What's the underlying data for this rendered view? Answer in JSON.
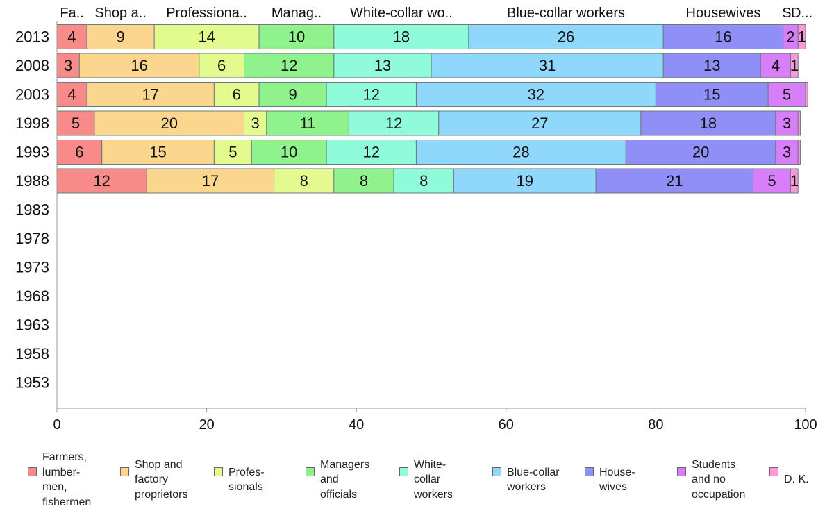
{
  "chart_data": {
    "type": "bar",
    "orientation": "horizontal",
    "stacked": true,
    "categories": [
      "2013",
      "2008",
      "2003",
      "1998",
      "1993",
      "1988",
      "1983",
      "1978",
      "1973",
      "1968",
      "1963",
      "1958",
      "1953"
    ],
    "xlim": [
      0,
      100
    ],
    "xticks": [
      "0",
      "20",
      "40",
      "60",
      "80",
      "100"
    ],
    "grid": false,
    "legend_position": "bottom",
    "top_labels": [
      "Fa..",
      "Shop a..",
      "Professiona..",
      "Manag..",
      "White-collar wo..",
      "Blue-collar workers",
      "Housewives",
      "S..",
      "D..."
    ],
    "series": [
      {
        "name": "Farmers,\nlumber-\nmen,\nfishermen",
        "color": "#f88a8a",
        "values": [
          4,
          3,
          4,
          5,
          6,
          12,
          null,
          null,
          null,
          null,
          null,
          null,
          null
        ]
      },
      {
        "name": "Shop and\nfactory\nproprietors",
        "color": "#fbd68e",
        "values": [
          9,
          16,
          17,
          20,
          15,
          17,
          null,
          null,
          null,
          null,
          null,
          null,
          null
        ]
      },
      {
        "name": "Profes-\nsionals",
        "color": "#e3fb8e",
        "values": [
          14,
          6,
          6,
          3,
          5,
          8,
          null,
          null,
          null,
          null,
          null,
          null,
          null
        ]
      },
      {
        "name": "Managers\nand\nofficials",
        "color": "#8ff28c",
        "values": [
          10,
          12,
          9,
          11,
          10,
          8,
          null,
          null,
          null,
          null,
          null,
          null,
          null
        ]
      },
      {
        "name": "White-\ncollar\nworkers",
        "color": "#90fbd9",
        "values": [
          18,
          13,
          12,
          12,
          12,
          8,
          null,
          null,
          null,
          null,
          null,
          null,
          null
        ]
      },
      {
        "name": "Blue-collar\nworkers",
        "color": "#8fd8fb",
        "values": [
          26,
          31,
          32,
          27,
          28,
          19,
          null,
          null,
          null,
          null,
          null,
          null,
          null
        ]
      },
      {
        "name": "House-\nwives",
        "color": "#8f8ff7",
        "values": [
          16,
          13,
          15,
          18,
          20,
          21,
          null,
          null,
          null,
          null,
          null,
          null,
          null
        ]
      },
      {
        "name": "Students\nand no\noccupation",
        "color": "#d77ffb",
        "values": [
          2,
          4,
          5,
          3,
          3,
          5,
          null,
          null,
          null,
          null,
          null,
          null,
          null
        ]
      },
      {
        "name": "D. K.",
        "color": "#fb9ad6",
        "values": [
          1,
          1,
          0.3,
          0.3,
          0.3,
          1,
          null,
          null,
          null,
          null,
          null,
          null,
          null
        ]
      }
    ]
  }
}
